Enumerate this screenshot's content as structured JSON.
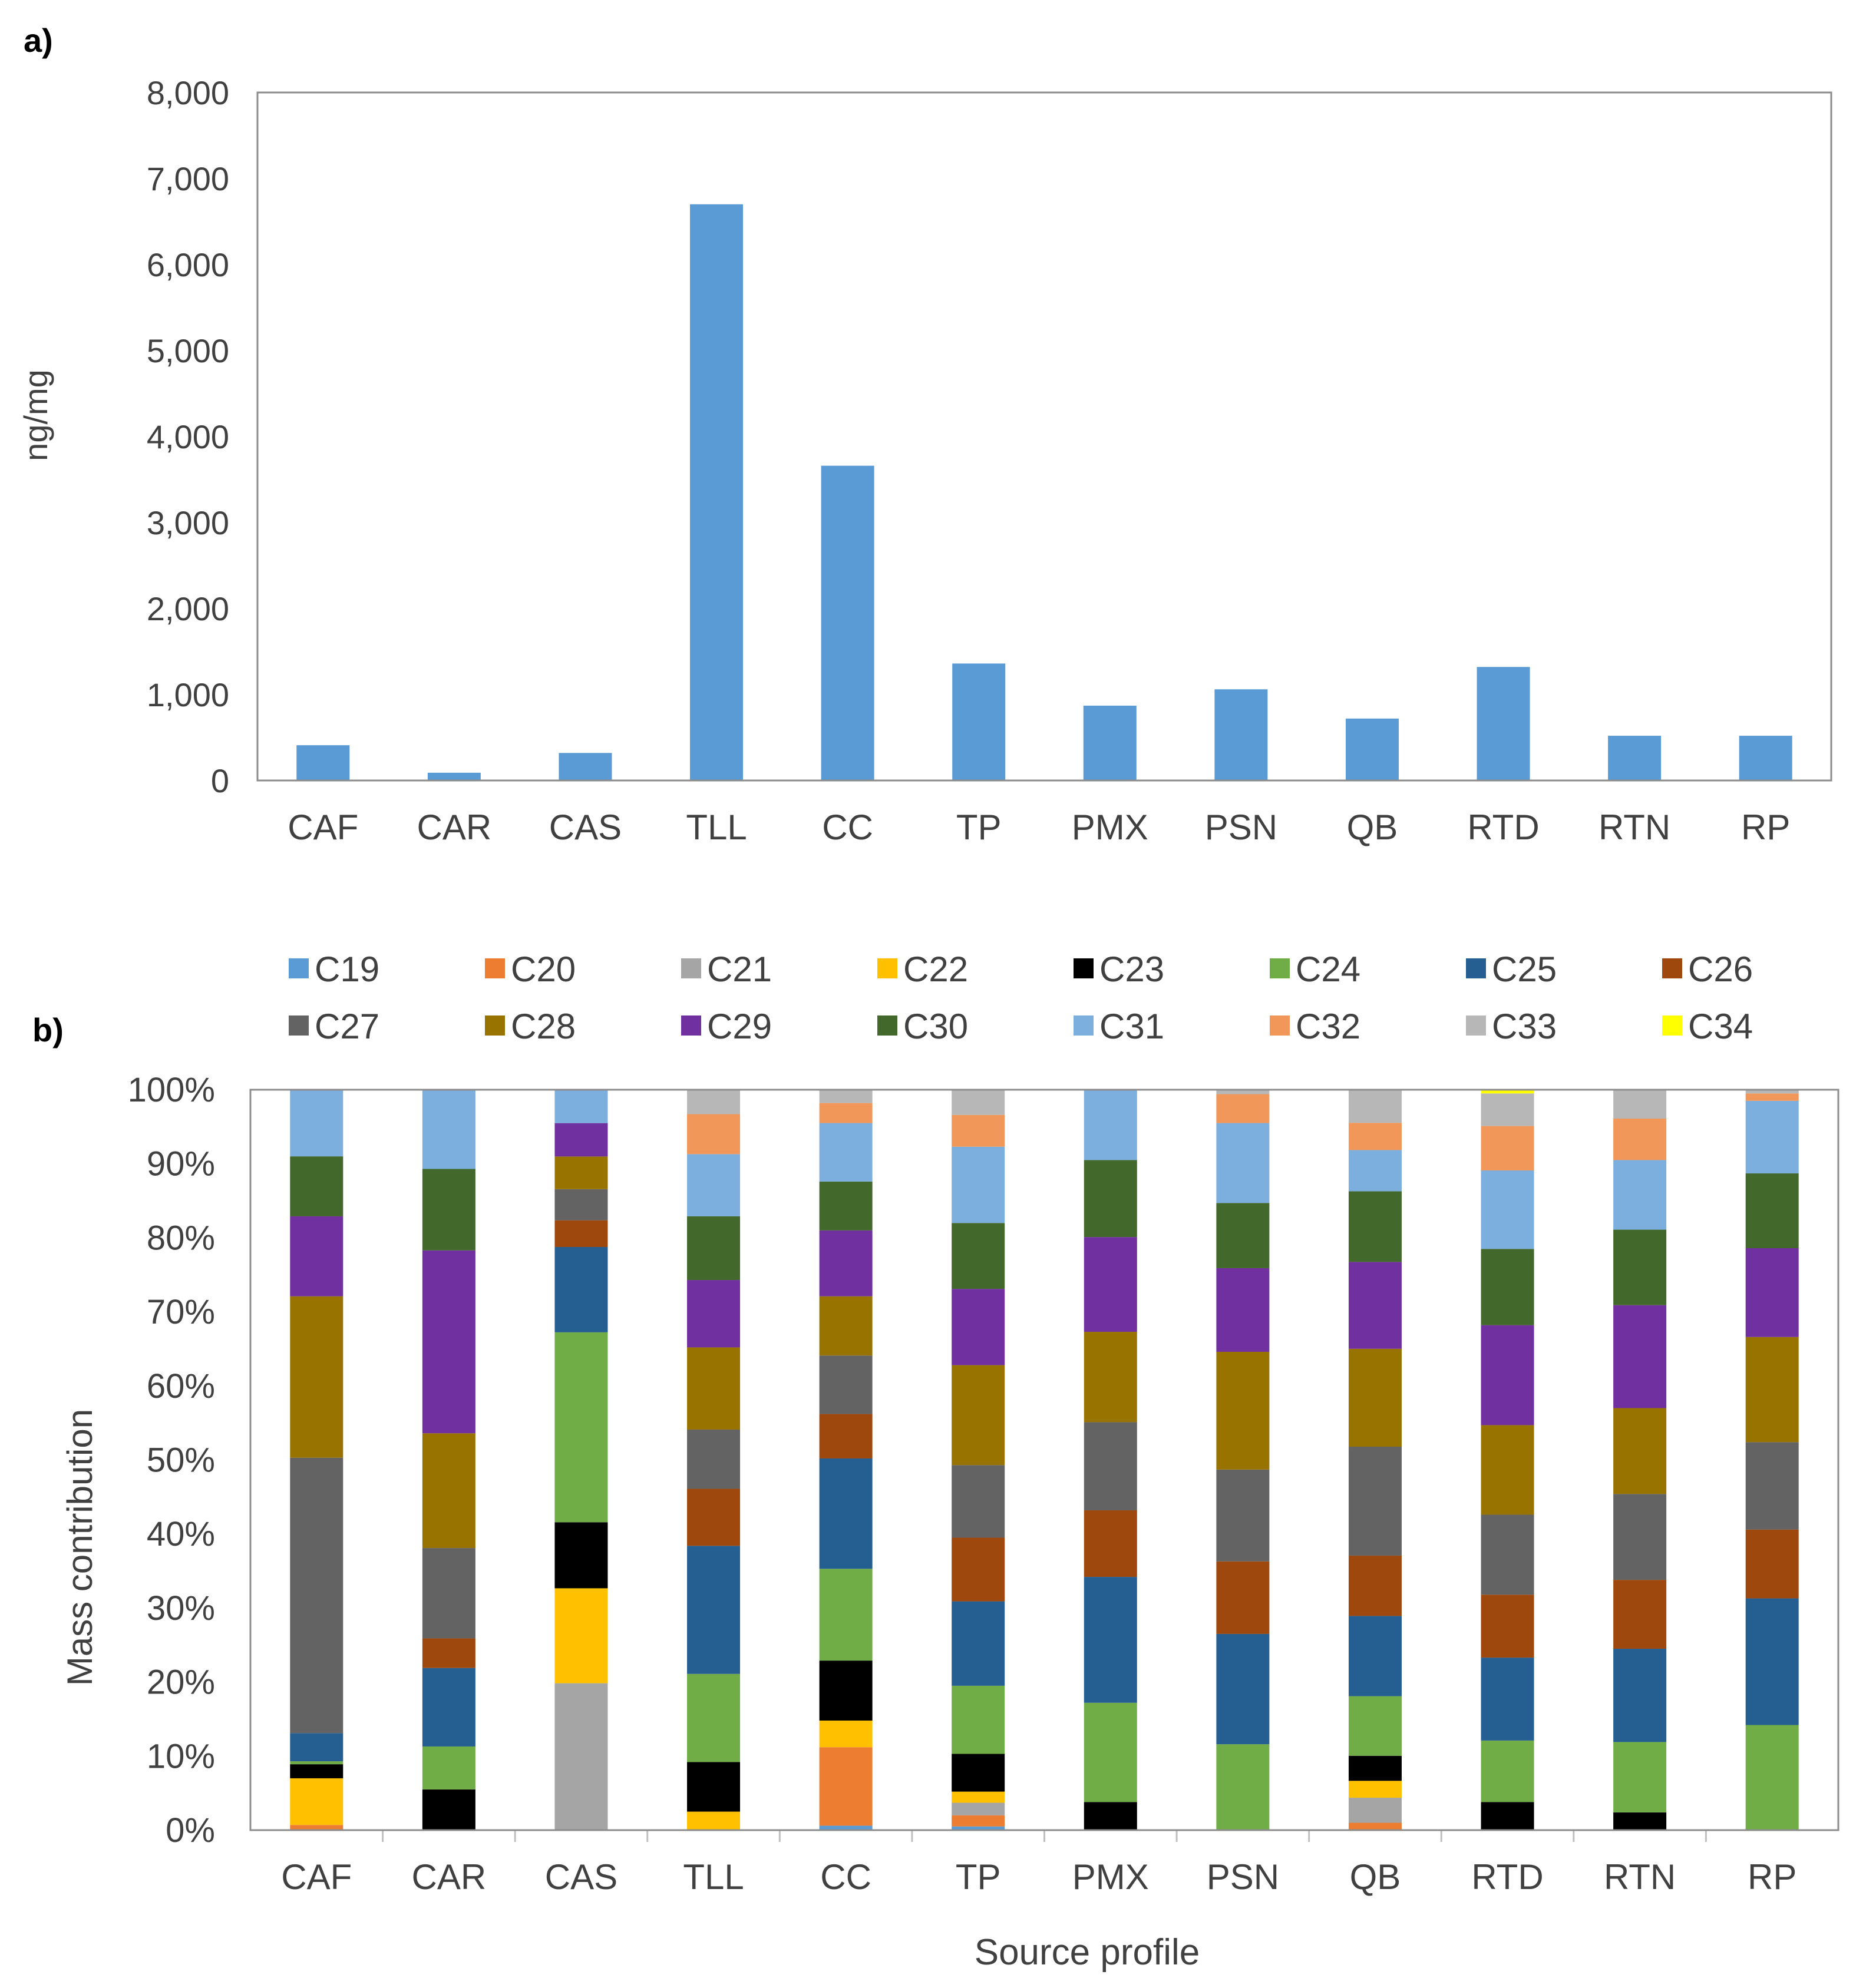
{
  "chart_data": [
    {
      "type": "bar",
      "panel_label": "a)",
      "title": "",
      "xlabel": "",
      "ylabel": "ng/mg",
      "ylim": [
        0,
        8000
      ],
      "yticks": [
        0,
        1000,
        2000,
        3000,
        4000,
        5000,
        6000,
        7000,
        8000
      ],
      "ytick_labels": [
        "0",
        "1,000",
        "2,000",
        "3,000",
        "4,000",
        "5,000",
        "6,000",
        "7,000",
        "8,000"
      ],
      "categories": [
        "CAF",
        "CAR",
        "CAS",
        "TLL",
        "CC",
        "TP",
        "PMX",
        "PSN",
        "QB",
        "RTD",
        "RTN",
        "RP"
      ],
      "values": [
        410,
        90,
        320,
        6700,
        3660,
        1360,
        870,
        1060,
        720,
        1320,
        520,
        520
      ],
      "color": "#5b9bd5",
      "grid": false
    },
    {
      "type": "bar",
      "stacked": true,
      "panel_label": "b)",
      "title": "",
      "xlabel": "Source profile",
      "ylabel": "Mass contribution",
      "ylim": [
        0,
        100
      ],
      "yticks": [
        0,
        10,
        20,
        30,
        40,
        50,
        60,
        70,
        80,
        90,
        100
      ],
      "ytick_labels": [
        "0%",
        "10%",
        "20%",
        "30%",
        "40%",
        "50%",
        "60%",
        "70%",
        "80%",
        "90%",
        "100%"
      ],
      "legend_position": "top",
      "categories": [
        "CAF",
        "CAR",
        "CAS",
        "TLL",
        "CC",
        "TP",
        "PMX",
        "PSN",
        "QB",
        "RTD",
        "RTN",
        "RP"
      ],
      "series": [
        {
          "name": "C19",
          "color": "#5b9bd5",
          "values": [
            0,
            0,
            0,
            0,
            0.6,
            0.5,
            0,
            0,
            0,
            0,
            0,
            0
          ]
        },
        {
          "name": "C20",
          "color": "#ed7d31",
          "values": [
            0.7,
            0,
            0,
            0,
            10.6,
            1.5,
            0,
            0,
            1,
            0,
            0,
            0
          ]
        },
        {
          "name": "C21",
          "color": "#a5a5a5",
          "values": [
            0,
            0,
            19.8,
            0,
            0,
            1.7,
            0,
            0,
            3.4,
            0,
            0,
            0
          ]
        },
        {
          "name": "C22",
          "color": "#ffc000",
          "values": [
            6.3,
            0,
            12.8,
            2.5,
            3.6,
            1.5,
            0,
            0,
            2.3,
            0,
            0,
            0
          ]
        },
        {
          "name": "C23",
          "color": "#000000",
          "values": [
            1.9,
            5.5,
            8.9,
            6.7,
            8.1,
            5.1,
            3.8,
            0,
            3.4,
            3.8,
            2.4,
            0
          ]
        },
        {
          "name": "C24",
          "color": "#70ad47",
          "values": [
            0.4,
            5.8,
            25.6,
            11.9,
            12.4,
            9.2,
            13.4,
            11.6,
            8.1,
            8.3,
            9.5,
            14.2
          ]
        },
        {
          "name": "C25",
          "color": "#255e91",
          "values": [
            3.8,
            10.6,
            11.5,
            17.3,
            14.9,
            11.4,
            17,
            14.9,
            10.9,
            11.2,
            12.6,
            17.1
          ]
        },
        {
          "name": "C26",
          "color": "#9e480e",
          "values": [
            0,
            4,
            3.6,
            7.7,
            6,
            8.6,
            9,
            9.8,
            8.2,
            8.5,
            9.3,
            9.3
          ]
        },
        {
          "name": "C27",
          "color": "#636363",
          "values": [
            37.2,
            12.2,
            4.2,
            8,
            7.9,
            9.8,
            11.9,
            12.4,
            14.8,
            10.8,
            11.6,
            11.8
          ]
        },
        {
          "name": "C28",
          "color": "#997300",
          "values": [
            21.8,
            15.5,
            4.4,
            11.1,
            8,
            13.5,
            12.2,
            15.9,
            13.3,
            12.1,
            11.6,
            14.2
          ]
        },
        {
          "name": "C29",
          "color": "#7030a0",
          "values": [
            10.8,
            24.7,
            4.5,
            9.1,
            8.9,
            10.3,
            12.8,
            11.3,
            11.8,
            13.5,
            13.9,
            12
          ]
        },
        {
          "name": "C30",
          "color": "#43682b",
          "values": [
            8.1,
            11,
            0,
            8.6,
            6.6,
            8.9,
            10.4,
            8.8,
            9.6,
            10.3,
            10.2,
            10.1
          ]
        },
        {
          "name": "C31",
          "color": "#7cafdd",
          "values": [
            9,
            10.7,
            4.5,
            8.4,
            7.9,
            10.3,
            9.5,
            10.8,
            5.6,
            10.6,
            9.4,
            9.8
          ]
        },
        {
          "name": "C32",
          "color": "#f1975a",
          "values": [
            0,
            0,
            0,
            5.4,
            2.7,
            4.3,
            0,
            3.9,
            3.7,
            6,
            5.6,
            1
          ]
        },
        {
          "name": "C33",
          "color": "#b7b7b7",
          "values": [
            0,
            0,
            0,
            3.3,
            1.8,
            3.4,
            0,
            0.6,
            4.5,
            4.4,
            3.9,
            0.5
          ]
        },
        {
          "name": "C34",
          "color": "#ffff00",
          "values": [
            0,
            0,
            0,
            0,
            0,
            0,
            0,
            0,
            0,
            0.5,
            0,
            0
          ]
        }
      ]
    }
  ]
}
